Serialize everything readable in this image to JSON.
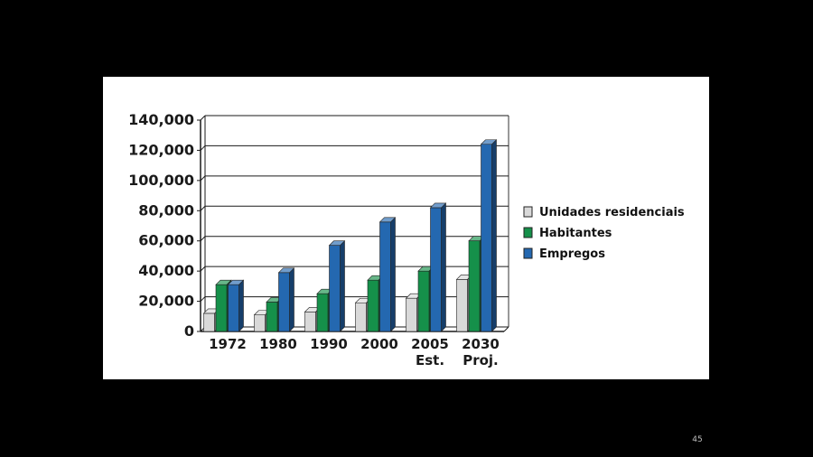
{
  "slide": {
    "page_number": "45"
  },
  "chart_data": {
    "type": "bar",
    "categories": [
      [
        "1972"
      ],
      [
        "1980"
      ],
      [
        "1990"
      ],
      [
        "2000"
      ],
      [
        "2005",
        "Est."
      ],
      [
        "2030",
        "Proj."
      ]
    ],
    "series": [
      {
        "name": "Unidades residenciais",
        "values": [
          12000,
          11000,
          13000,
          19000,
          22000,
          34500
        ],
        "color": "#d9d9d9"
      },
      {
        "name": "Habitantes",
        "values": [
          31000,
          19500,
          25000,
          34000,
          40000,
          60000
        ],
        "color": "#15904a"
      },
      {
        "name": "Empregos",
        "values": [
          31000,
          39000,
          57000,
          72500,
          82000,
          124000
        ],
        "color": "#2468b0"
      }
    ],
    "y_ticks": [
      "0",
      "20,000",
      "40,000",
      "60,000",
      "80,000",
      "100,000",
      "120,000",
      "140,000"
    ],
    "ylim": [
      0,
      140000
    ],
    "grid": true,
    "legend_position": "right",
    "title": "",
    "xlabel": "",
    "ylabel": ""
  }
}
